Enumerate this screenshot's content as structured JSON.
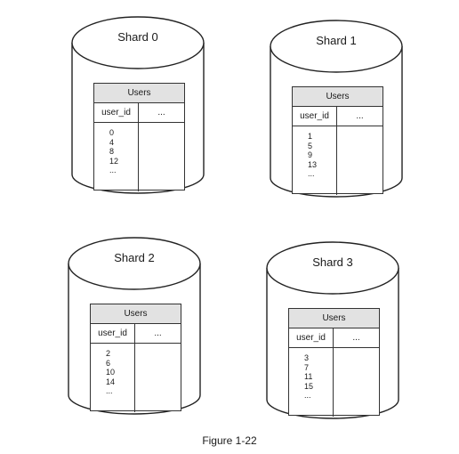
{
  "shards": [
    {
      "title": "Shard 0",
      "table": {
        "name": "Users",
        "columns": [
          "user_id",
          "..."
        ],
        "ids": [
          "0",
          "4",
          "8",
          "12",
          "..."
        ]
      }
    },
    {
      "title": "Shard 1",
      "table": {
        "name": "Users",
        "columns": [
          "user_id",
          "..."
        ],
        "ids": [
          "1",
          "5",
          "9",
          "13",
          "..."
        ]
      }
    },
    {
      "title": "Shard 2",
      "table": {
        "name": "Users",
        "columns": [
          "user_id",
          "..."
        ],
        "ids": [
          "2",
          "6",
          "10",
          "14",
          "..."
        ]
      }
    },
    {
      "title": "Shard 3",
      "table": {
        "name": "Users",
        "columns": [
          "user_id",
          "..."
        ],
        "ids": [
          "3",
          "7",
          "11",
          "15",
          "..."
        ]
      }
    }
  ],
  "caption": "Figure 1-22"
}
